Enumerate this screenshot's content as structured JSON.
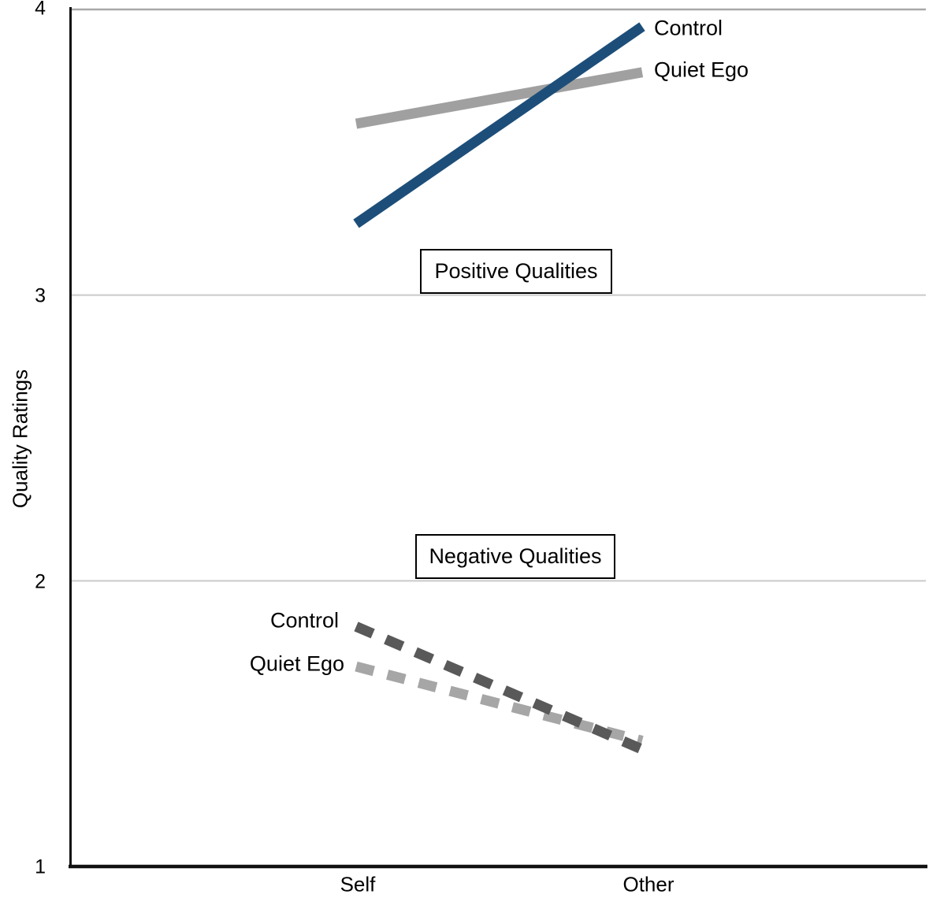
{
  "chart_data": {
    "type": "line",
    "title": "",
    "xlabel": "",
    "ylabel": "Quality Ratings",
    "categories": [
      "Self",
      "Other"
    ],
    "ylim": [
      1,
      4
    ],
    "yticks": [
      1,
      2,
      3,
      4
    ],
    "grid": "horizontal gridlines at y = 2, 3 and 4",
    "legend_position": "direct labels at line endpoints",
    "groups": [
      {
        "name": "Positive Qualities",
        "series": [
          {
            "name": "Control",
            "values": [
              3.25,
              3.94
            ],
            "color": "#1d4e79",
            "style": "solid"
          },
          {
            "name": "Quiet Ego",
            "values": [
              3.6,
              3.78
            ],
            "color": "#a0a0a0",
            "style": "solid"
          }
        ]
      },
      {
        "name": "Negative Qualities",
        "series": [
          {
            "name": "Control",
            "values": [
              1.84,
              1.41
            ],
            "color": "#595959",
            "style": "dashed"
          },
          {
            "name": "Quiet Ego",
            "values": [
              1.7,
              1.44
            ],
            "color": "#a6a6a6",
            "style": "dashed"
          }
        ]
      }
    ]
  },
  "axis": {
    "y_tick_labels": [
      "4",
      "3",
      "2",
      "1"
    ],
    "x_tick_labels": [
      "Self",
      "Other"
    ]
  },
  "colors": {
    "positive_control": "#1d4e79",
    "positive_quiet_ego": "#a0a0a0",
    "negative_control": "#595959",
    "negative_quiet_ego": "#a6a6a6",
    "gridline_top": "#a8a8a8",
    "gridline": "#c9c9c9",
    "axis_line": "#111111",
    "text": "#000000"
  }
}
